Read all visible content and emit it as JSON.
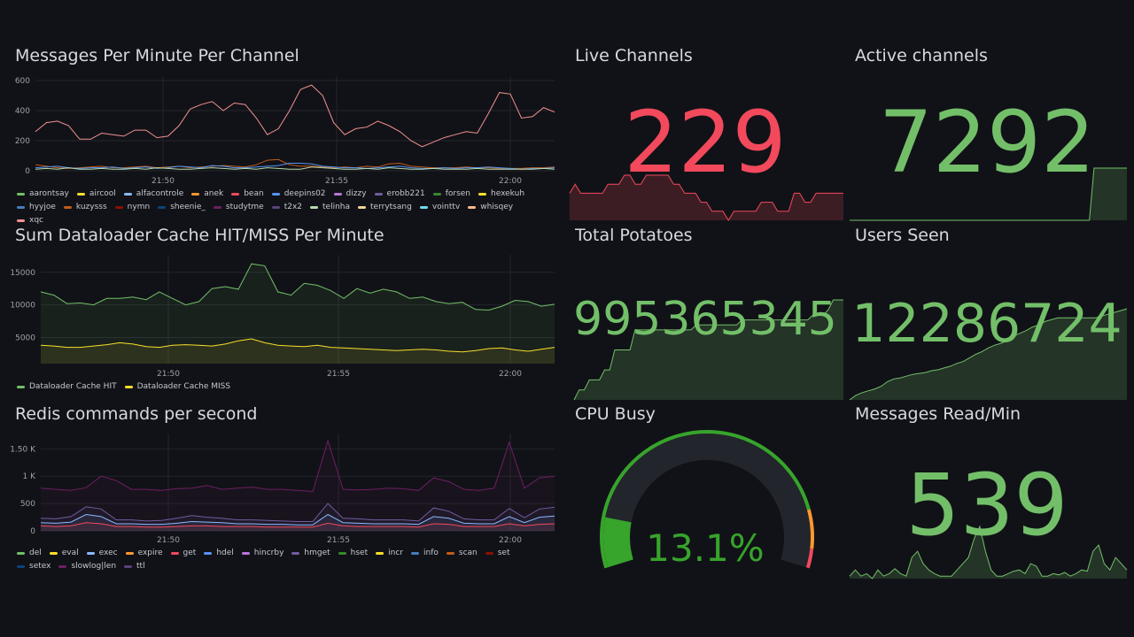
{
  "panels": {
    "messages": {
      "title": "Messages Per Minute Per Channel"
    },
    "dataloader": {
      "title": "Sum Dataloader Cache HIT/MISS Per Minute"
    },
    "redis": {
      "title": "Redis commands per second"
    },
    "live": {
      "title": "Live Channels",
      "value": "229",
      "color": "#f2495c"
    },
    "active": {
      "title": "Active channels",
      "value": "7292",
      "color": "#73bf69"
    },
    "potatoes": {
      "title": "Total Potatoes",
      "value": "995365345",
      "color": "#73bf69"
    },
    "users": {
      "title": "Users Seen",
      "value": "12286724",
      "color": "#73bf69"
    },
    "cpu": {
      "title": "CPU Busy",
      "value": "13.1%",
      "percent": 13.1,
      "color": "#37a42c"
    },
    "reads": {
      "title": "Messages Read/Min",
      "value": "539",
      "color": "#73bf69"
    }
  },
  "chart_data": [
    {
      "id": "messages",
      "type": "line",
      "title": "Messages Per Minute Per Channel",
      "xticks": [
        "21:50",
        "21:55",
        "22:00"
      ],
      "yticks": [
        "0",
        "200",
        "400",
        "600"
      ],
      "ylim": [
        0,
        600
      ],
      "legend": [
        {
          "name": "aarontsay",
          "color": "#73bf69"
        },
        {
          "name": "aircool",
          "color": "#fade2a"
        },
        {
          "name": "alfacontrole",
          "color": "#8ab8ff"
        },
        {
          "name": "anek",
          "color": "#ff9830"
        },
        {
          "name": "bean",
          "color": "#f2495c"
        },
        {
          "name": "deepins02",
          "color": "#5794f2"
        },
        {
          "name": "dizzy",
          "color": "#b877d9"
        },
        {
          "name": "erobb221",
          "color": "#705da0"
        },
        {
          "name": "forsen",
          "color": "#37872d"
        },
        {
          "name": "hexekuh",
          "color": "#fade2a"
        },
        {
          "name": "hyyjoe",
          "color": "#447ebc"
        },
        {
          "name": "kuzysss",
          "color": "#c15c17"
        },
        {
          "name": "nymn",
          "color": "#890f02"
        },
        {
          "name": "sheenie_",
          "color": "#0a437c"
        },
        {
          "name": "studytme",
          "color": "#6d1f62"
        },
        {
          "name": "t2x2",
          "color": "#584477"
        },
        {
          "name": "telinha",
          "color": "#b7dbab"
        },
        {
          "name": "terrytsang",
          "color": "#f4d598"
        },
        {
          "name": "vointtv",
          "color": "#70dbed"
        },
        {
          "name": "whisqey",
          "color": "#f9ba8f"
        },
        {
          "name": "xqc",
          "color": "#f29191"
        }
      ],
      "series": [
        {
          "name": "xqc",
          "values": [
            260,
            320,
            330,
            300,
            210,
            210,
            250,
            240,
            230,
            270,
            270,
            220,
            230,
            300,
            410,
            440,
            460,
            400,
            450,
            440,
            350,
            240,
            280,
            400,
            540,
            570,
            500,
            320,
            240,
            280,
            290,
            330,
            300,
            260,
            200,
            160,
            190,
            220,
            240,
            260,
            250,
            380,
            520,
            510,
            350,
            360,
            420,
            390
          ]
        },
        {
          "name": "kuzysss",
          "values": [
            40,
            30,
            20,
            15,
            20,
            25,
            30,
            20,
            20,
            25,
            30,
            20,
            25,
            30,
            20,
            25,
            30,
            35,
            30,
            25,
            40,
            70,
            75,
            40,
            30,
            30,
            25,
            20,
            25,
            20,
            30,
            25,
            45,
            50,
            30,
            25,
            20,
            20,
            20,
            25,
            20,
            20,
            15,
            15,
            15,
            20,
            20,
            25
          ]
        },
        {
          "name": "deepins02",
          "values": [
            20,
            25,
            30,
            20,
            15,
            20,
            20,
            25,
            15,
            20,
            25,
            15,
            20,
            30,
            25,
            20,
            35,
            30,
            20,
            20,
            25,
            30,
            35,
            50,
            50,
            45,
            30,
            25,
            20,
            20,
            15,
            20,
            25,
            30,
            20,
            15,
            15,
            20,
            15,
            20,
            20,
            25,
            20,
            15,
            10,
            15,
            15,
            20
          ]
        },
        {
          "name": "telinha",
          "values": [
            10,
            15,
            10,
            20,
            10,
            10,
            15,
            10,
            10,
            15,
            10,
            20,
            15,
            10,
            10,
            15,
            20,
            15,
            10,
            15,
            10,
            20,
            15,
            10,
            10,
            25,
            20,
            15,
            10,
            10,
            15,
            10,
            20,
            15,
            10,
            10,
            15,
            10,
            10,
            10,
            15,
            10,
            10,
            10,
            10,
            10,
            15,
            10
          ]
        }
      ]
    },
    {
      "id": "dataloader",
      "type": "area",
      "title": "Sum Dataloader Cache HIT/MISS Per Minute",
      "xticks": [
        "21:50",
        "21:55",
        "22:00"
      ],
      "yticks": [
        "5000",
        "10000",
        "15000"
      ],
      "ylim": [
        1000,
        17000
      ],
      "legend": [
        {
          "name": "Dataloader Cache HIT",
          "color": "#73bf69"
        },
        {
          "name": "Dataloader Cache MISS",
          "color": "#fade2a"
        }
      ],
      "series": [
        {
          "name": "Dataloader Cache HIT",
          "values": [
            12000,
            11500,
            10200,
            10300,
            10000,
            11000,
            11000,
            11200,
            10800,
            12000,
            11000,
            10000,
            10500,
            12500,
            12800,
            12400,
            16300,
            16000,
            12000,
            11500,
            13300,
            13000,
            12200,
            11000,
            12500,
            11800,
            12400,
            12000,
            11000,
            11200,
            10500,
            10200,
            10400,
            9300,
            9200,
            9800,
            10700,
            10500,
            9800,
            10100
          ]
        },
        {
          "name": "Dataloader Cache MISS",
          "values": [
            3800,
            3700,
            3500,
            3500,
            3700,
            3900,
            4200,
            4000,
            3600,
            3500,
            3800,
            3900,
            3800,
            3700,
            4000,
            4500,
            4800,
            4200,
            3800,
            3700,
            3600,
            3800,
            3500,
            3400,
            3300,
            3200,
            3100,
            3000,
            3100,
            3200,
            3100,
            2900,
            2800,
            3000,
            3300,
            3400,
            3100,
            2900,
            3200,
            3500
          ]
        }
      ]
    },
    {
      "id": "redis",
      "type": "area",
      "title": "Redis commands per second",
      "xticks": [
        "21:50",
        "21:55",
        "22:00"
      ],
      "yticks": [
        "0",
        "500",
        "1 K",
        "1.50 K"
      ],
      "ylim": [
        0,
        1700
      ],
      "legend": [
        {
          "name": "del",
          "color": "#73bf69"
        },
        {
          "name": "eval",
          "color": "#fade2a"
        },
        {
          "name": "exec",
          "color": "#8ab8ff"
        },
        {
          "name": "expire",
          "color": "#ff9830"
        },
        {
          "name": "get",
          "color": "#f2495c"
        },
        {
          "name": "hdel",
          "color": "#5794f2"
        },
        {
          "name": "hincrby",
          "color": "#b877d9"
        },
        {
          "name": "hmget",
          "color": "#705da0"
        },
        {
          "name": "hset",
          "color": "#37872d"
        },
        {
          "name": "incr",
          "color": "#fade2a"
        },
        {
          "name": "info",
          "color": "#447ebc"
        },
        {
          "name": "scan",
          "color": "#c15c17"
        },
        {
          "name": "set",
          "color": "#890f02"
        },
        {
          "name": "setex",
          "color": "#0a437c"
        },
        {
          "name": "slowlog|len",
          "color": "#6d1f62"
        },
        {
          "name": "ttl",
          "color": "#584477"
        }
      ],
      "series": [
        {
          "name": "slowlog|len",
          "values": [
            780,
            760,
            740,
            790,
            1000,
            920,
            760,
            760,
            740,
            770,
            780,
            830,
            760,
            780,
            800,
            760,
            760,
            740,
            720,
            1650,
            760,
            750,
            760,
            780,
            770,
            740,
            970,
            900,
            760,
            740,
            780,
            1620,
            780,
            970,
            1000
          ]
        },
        {
          "name": "hmget",
          "values": [
            230,
            220,
            260,
            440,
            400,
            200,
            200,
            180,
            190,
            230,
            280,
            250,
            230,
            200,
            200,
            190,
            180,
            170,
            170,
            500,
            230,
            220,
            200,
            200,
            200,
            180,
            420,
            360,
            220,
            200,
            200,
            410,
            240,
            400,
            430
          ]
        },
        {
          "name": "exec",
          "values": [
            150,
            140,
            160,
            300,
            260,
            130,
            130,
            120,
            120,
            140,
            170,
            160,
            150,
            130,
            130,
            120,
            120,
            110,
            110,
            300,
            150,
            140,
            130,
            130,
            130,
            120,
            260,
            230,
            140,
            130,
            130,
            260,
            150,
            250,
            270
          ]
        },
        {
          "name": "get",
          "values": [
            90,
            80,
            90,
            150,
            130,
            80,
            80,
            70,
            70,
            80,
            90,
            90,
            80,
            80,
            80,
            70,
            70,
            70,
            70,
            140,
            90,
            80,
            80,
            80,
            80,
            70,
            130,
            120,
            80,
            80,
            80,
            130,
            90,
            120,
            130
          ]
        }
      ]
    },
    {
      "id": "live",
      "type": "area",
      "values": [
        3,
        4,
        3,
        3,
        3,
        3,
        3,
        4,
        4,
        4,
        5,
        5,
        4,
        4,
        5,
        5,
        5,
        5,
        5,
        4,
        4,
        3,
        3,
        3,
        2,
        2,
        1,
        1,
        1,
        0,
        1,
        1,
        1,
        1,
        1,
        2,
        2,
        2,
        1,
        1,
        1,
        3,
        3,
        2,
        2,
        3,
        3,
        3,
        3,
        3,
        3
      ]
    },
    {
      "id": "active",
      "type": "area",
      "values": [
        0,
        0,
        0,
        0,
        0,
        0,
        0,
        0,
        0,
        0,
        0,
        0,
        0,
        0,
        0,
        0,
        0,
        0,
        0,
        0,
        0,
        0,
        0,
        0,
        0,
        0,
        0,
        0,
        0,
        0,
        0,
        0,
        0,
        0,
        0,
        0,
        0,
        0,
        0,
        0,
        0,
        0,
        0,
        0,
        0,
        0,
        0,
        0,
        0,
        0,
        0,
        0,
        10,
        10,
        10,
        10,
        10,
        10,
        10,
        10
      ]
    },
    {
      "id": "potatoes",
      "type": "area",
      "values": [
        0,
        1,
        1,
        2,
        2,
        2,
        3,
        3,
        5,
        5,
        5,
        5,
        7,
        7,
        7,
        7,
        7,
        7,
        7,
        7,
        7,
        7,
        7,
        7,
        7.5,
        7.5,
        7.5,
        7.5,
        7.5,
        7.5,
        7.5,
        7.5,
        7.5,
        8,
        8,
        8,
        8,
        8,
        8,
        8,
        8,
        8,
        8,
        8,
        8,
        8,
        8,
        8.5,
        8.5,
        8.5,
        9,
        10,
        10,
        10
      ]
    },
    {
      "id": "users",
      "type": "area",
      "values": [
        0,
        0.5,
        0.8,
        1,
        1.2,
        1.5,
        2,
        2.3,
        2.4,
        2.6,
        2.8,
        2.9,
        3,
        3.2,
        3.3,
        3.5,
        3.7,
        4,
        4.2,
        4.6,
        5,
        5.3,
        5.7,
        6,
        6.2,
        6.5,
        7,
        7.3,
        7.6,
        8,
        8.2,
        8.6,
        8.8,
        9,
        9,
        9,
        9,
        9,
        9,
        9,
        9.2,
        9.4,
        9.6,
        9.8,
        10
      ]
    },
    {
      "id": "reads",
      "type": "area",
      "values": [
        1,
        1.5,
        1,
        1.2,
        0.8,
        1.5,
        1,
        1.2,
        1.6,
        1.2,
        1,
        2.5,
        3,
        2,
        1.5,
        1.2,
        1,
        1,
        1,
        1.5,
        2,
        2.5,
        4,
        5,
        3,
        1.5,
        1,
        1,
        1.2,
        1.4,
        1.5,
        1.2,
        2,
        1.8,
        1,
        1,
        1.2,
        1.1,
        1.3,
        1,
        1.2,
        1.5,
        1.4,
        3,
        3.5,
        2,
        1.5,
        2.5,
        2,
        1.5
      ]
    }
  ]
}
